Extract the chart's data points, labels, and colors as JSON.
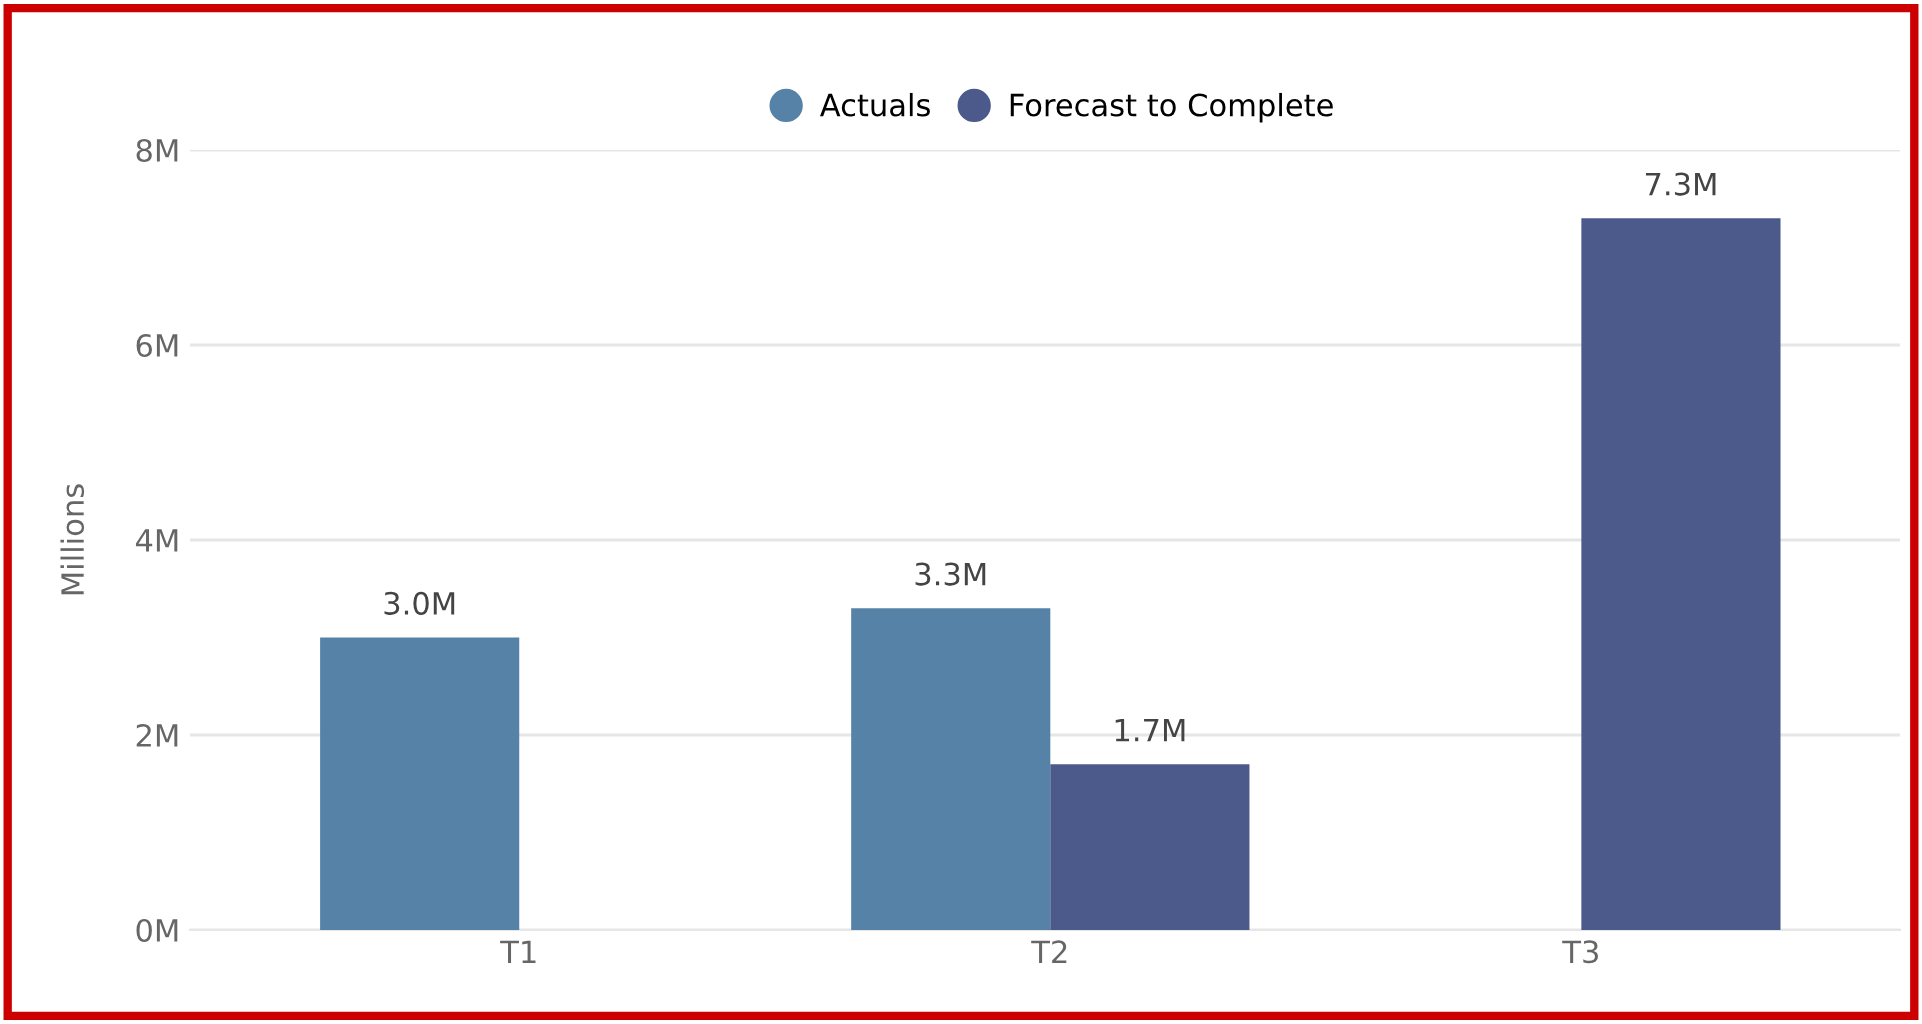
{
  "chart_data": {
    "type": "bar",
    "ylabel": "Millions",
    "categories": [
      "T1",
      "T2",
      "T3"
    ],
    "series": [
      {
        "name": "Actuals",
        "color": "#5682a8",
        "values": [
          3.0,
          3.3,
          null
        ],
        "value_labels": [
          "3.0M",
          "3.3M",
          null
        ]
      },
      {
        "name": "Forecast to Complete",
        "color": "#4b5a8a",
        "values": [
          null,
          1.7,
          7.3
        ],
        "value_labels": [
          null,
          "1.7M",
          "7.3M"
        ]
      }
    ],
    "ylim": [
      0,
      8
    ],
    "yticks": [
      {
        "value": 0,
        "label": "0M"
      },
      {
        "value": 2,
        "label": "2M"
      },
      {
        "value": 4,
        "label": "4M"
      },
      {
        "value": 6,
        "label": "6M"
      },
      {
        "value": 8,
        "label": "8M"
      }
    ],
    "grid": "y",
    "legend": "top"
  }
}
